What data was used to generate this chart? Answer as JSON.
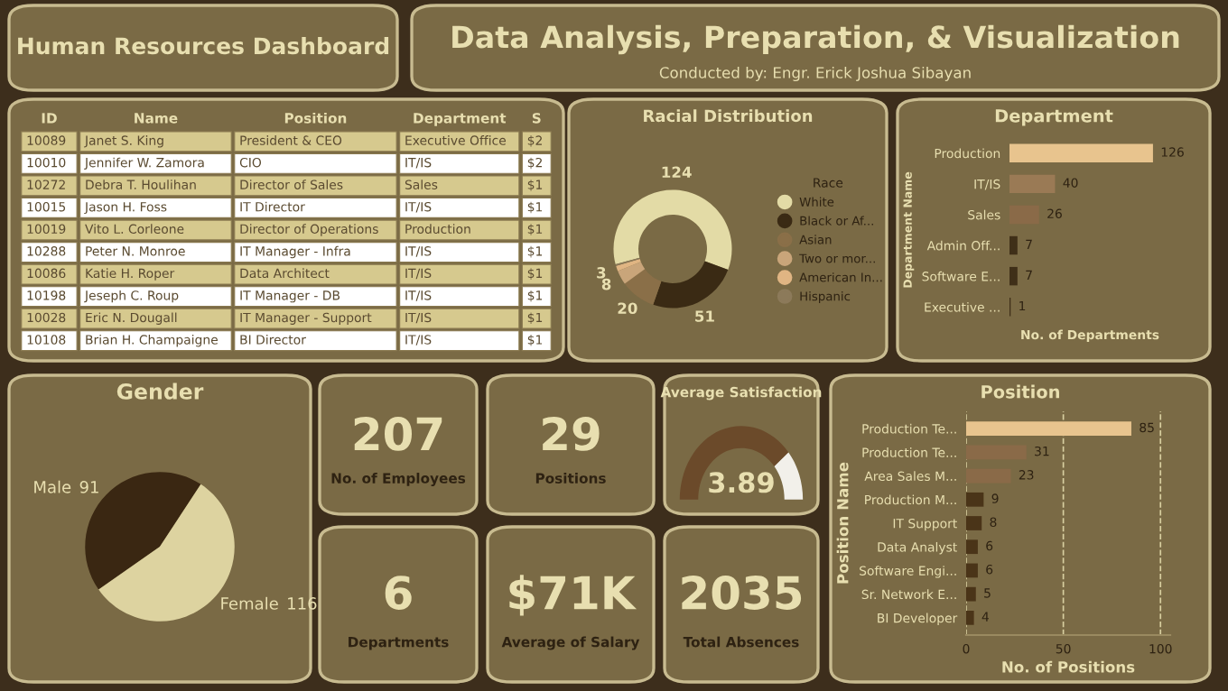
{
  "chart_data": [
    {
      "type": "other",
      "title": "Human Resources Dashboard"
    },
    {
      "type": "other",
      "title": "Data Analysis, Preparation, & Visualization",
      "subtitle": "Conducted by: Engr. Erick Joshua Sibayan"
    },
    {
      "type": "other",
      "categories": [
        "ID",
        "Name",
        "Position",
        "Department",
        "S"
      ],
      "cell_labels": [
        [
          "10089",
          "Janet S. King",
          "President & CEO",
          "Executive Office",
          "$2"
        ],
        [
          "10010",
          "Jennifer W. Zamora",
          "CIO",
          "IT/IS",
          "$2"
        ],
        [
          "10272",
          "Debra T. Houlihan",
          "Director of Sales",
          "Sales",
          "$1"
        ],
        [
          "10015",
          "Jason H. Foss",
          "IT Director",
          "IT/IS",
          "$1"
        ],
        [
          "10019",
          "Vito L. Corleone",
          "Director of Operations",
          "Production",
          "$1"
        ],
        [
          "10288",
          "Peter N. Monroe",
          "IT Manager - Infra",
          "IT/IS",
          "$1"
        ],
        [
          "10086",
          "Katie H. Roper",
          "Data Architect",
          "IT/IS",
          "$1"
        ],
        [
          "10198",
          "Jeseph C. Roup",
          "IT Manager - DB",
          "IT/IS",
          "$1"
        ],
        [
          "10028",
          "Eric N. Dougall",
          "IT Manager - Support",
          "IT/IS",
          "$1"
        ],
        [
          "10108",
          "Brian H. Champaigne",
          "BI Director",
          "IT/IS",
          "$1"
        ]
      ]
    },
    {
      "type": "donut",
      "title": "Racial Distribution",
      "legend_title": "Race",
      "legend": "right",
      "categories": [
        "White",
        "Black or Af...",
        "Asian",
        "Two or mor...",
        "American In...",
        "Hispanic"
      ],
      "values": [
        124,
        51,
        20,
        8,
        3,
        1
      ],
      "value_labels": [
        "124",
        "51",
        "20",
        "8",
        "3",
        null
      ],
      "colors": [
        "#e3dba6",
        "#3a2a14",
        "#8a6f48",
        "#c9a57a",
        "#e0b583",
        "#8c7a5a"
      ]
    },
    {
      "type": "bar",
      "orientation": "horizontal",
      "title": "Department",
      "ylabel": "Department Name",
      "xlabel": "No. of Departments",
      "categories": [
        "Production",
        "IT/IS",
        "Sales",
        "Admin Off...",
        "Software E...",
        "Executive ..."
      ],
      "values": [
        126,
        40,
        26,
        7,
        7,
        1
      ],
      "data_labels": true,
      "colors": [
        "#e8c48e",
        "#9a7a55",
        "#8a6a48",
        "#3f2f18",
        "#3f2f18",
        "#3f2f18"
      ]
    },
    {
      "type": "pie",
      "title": "Gender",
      "categories": [
        "Male",
        "Female"
      ],
      "values": [
        91,
        116
      ],
      "data_labels": true,
      "colors": [
        "#3a2712",
        "#ddd3a0"
      ]
    },
    {
      "type": "other",
      "annotations": [
        "207",
        "No. of Employees"
      ]
    },
    {
      "type": "other",
      "annotations": [
        "29",
        "Positions"
      ]
    },
    {
      "type": "donut",
      "title": "Average Satisfaction",
      "categories": [
        null,
        null
      ],
      "values": [
        3.89,
        1.11
      ],
      "value_labels": [
        "3.89",
        null
      ],
      "colors": [
        "#6b4a2a",
        "#f2f0ea"
      ]
    },
    {
      "type": "bar",
      "orientation": "horizontal",
      "title": "Position",
      "ylabel": "Position Name",
      "xlabel": "No. of Positions",
      "categories": [
        "Production Te...",
        "Production Te...",
        "Area Sales M...",
        "Production M...",
        "IT Support",
        "Data Analyst",
        "Software Engi...",
        "Sr. Network E...",
        "BI Developer"
      ],
      "values": [
        85,
        31,
        23,
        9,
        8,
        6,
        6,
        5,
        4
      ],
      "data_labels": true,
      "xlim": [
        0,
        105
      ],
      "xticks": [
        0,
        50,
        100
      ],
      "grid": "x",
      "colors": [
        "#e8c48e",
        "#8a6a48",
        "#8a6a48",
        "#4a3418",
        "#4a3418",
        "#4a3418",
        "#4a3418",
        "#4a3418",
        "#4a3418"
      ]
    },
    {
      "type": "other",
      "annotations": [
        "6",
        "Departments"
      ]
    },
    {
      "type": "other",
      "annotations": [
        "$71K",
        "Average of Salary"
      ]
    },
    {
      "type": "other",
      "annotations": [
        "2035",
        "Total Absences"
      ]
    }
  ]
}
